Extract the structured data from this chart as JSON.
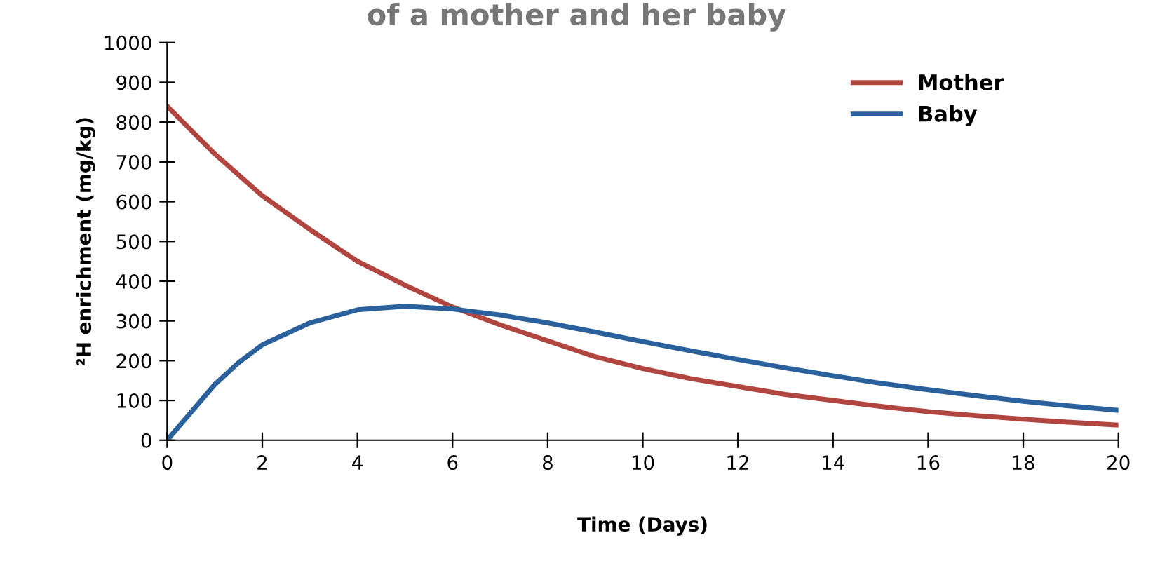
{
  "chart_data": {
    "type": "line",
    "title": "of a mother and her baby",
    "xlabel": "Time (Days)",
    "ylabel": "²H enrichment (mg/kg)",
    "series": [
      {
        "name": "Mother",
        "color": "#b0463f",
        "x": [
          0,
          1,
          2,
          3,
          4,
          5,
          6,
          7,
          8,
          9,
          10,
          11,
          12,
          13,
          14,
          15,
          16,
          17,
          18,
          19,
          20
        ],
        "values": [
          840,
          720,
          615,
          530,
          450,
          390,
          335,
          290,
          250,
          210,
          180,
          155,
          135,
          115,
          100,
          85,
          72,
          62,
          53,
          45,
          38
        ]
      },
      {
        "name": "Baby",
        "color": "#2a609b",
        "x": [
          0,
          0.5,
          1,
          1.5,
          2,
          3,
          4,
          5,
          6,
          7,
          8,
          9,
          10,
          11,
          12,
          13,
          14,
          15,
          16,
          17,
          18,
          19,
          20
        ],
        "values": [
          0,
          70,
          140,
          195,
          240,
          295,
          328,
          337,
          330,
          315,
          295,
          272,
          248,
          225,
          203,
          182,
          162,
          143,
          127,
          112,
          98,
          86,
          75
        ]
      }
    ],
    "xlim": [
      0,
      20
    ],
    "xticks": [
      0,
      2,
      4,
      6,
      8,
      10,
      12,
      14,
      16,
      18,
      20
    ],
    "ylim": [
      0,
      1000
    ],
    "yticks": [
      0,
      100,
      200,
      300,
      400,
      500,
      600,
      700,
      800,
      900,
      1000
    ],
    "grid": false,
    "legend": "top right"
  }
}
